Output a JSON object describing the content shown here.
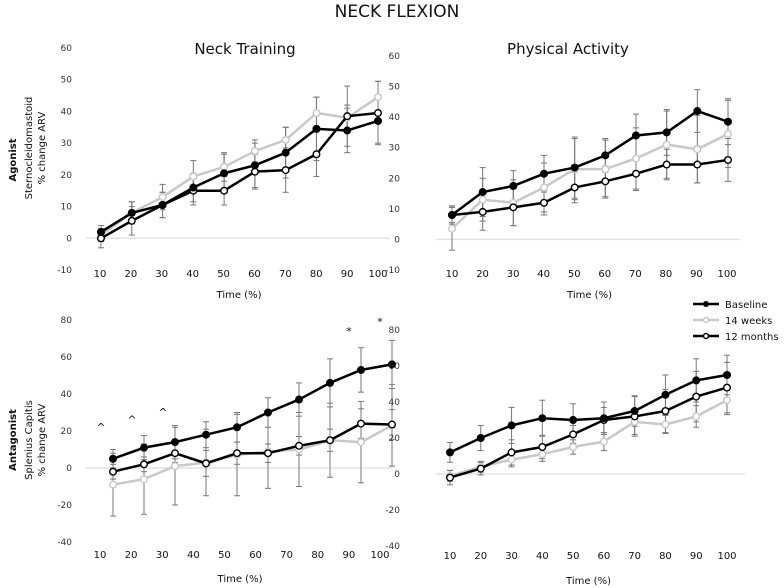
{
  "chart_data": {
    "type": "line",
    "title": "NECK FLEXION",
    "column_titles": [
      "Neck Training",
      "Physical Activity"
    ],
    "row_labels": [
      {
        "group": "Agonist",
        "ylabel": [
          "Sternocleidomastoid",
          "% change ARV"
        ]
      },
      {
        "group": "Antagonist",
        "ylabel": [
          "Splenius Capitis",
          "% change ARV"
        ]
      }
    ],
    "xlabel": "Time (%)",
    "x": [
      10,
      20,
      30,
      40,
      50,
      60,
      70,
      80,
      90,
      100
    ],
    "legend": {
      "position": "right-middle",
      "entries": [
        "Baseline",
        "14 weeks",
        "12 months"
      ]
    },
    "series_colors": {
      "Baseline": "#000000",
      "14 weeks": "#c8c8c8",
      "12 months": "#000000"
    },
    "panels": [
      {
        "name": "Neck Training - Agonist",
        "ylim": [
          -10,
          60
        ],
        "yticks": [
          -10,
          0,
          10,
          20,
          30,
          40,
          50,
          60
        ],
        "series": [
          {
            "name": "Baseline",
            "values": [
              2,
              8,
              10.5,
              16,
              20.5,
              23,
              27,
              34.5,
              34,
              37
            ],
            "err": [
              2,
              3.5,
              4,
              4.5,
              6,
              7,
              8,
              10,
              7,
              7
            ]
          },
          {
            "name": "14 weeks",
            "values": [
              1,
              8,
              13,
              19.5,
              22.5,
              27.5,
              31,
              39.5,
              38,
              44.5
            ],
            "err": [
              2,
              3.5,
              4,
              5,
              4.5,
              3.5,
              4,
              5,
              4,
              5
            ]
          },
          {
            "name": "12 months",
            "values": [
              0,
              5.5,
              10.5,
              15,
              15,
              21,
              21.5,
              26.5,
              38.5,
              39.5
            ],
            "err": [
              3,
              4.5,
              4,
              4.5,
              4.5,
              5.5,
              7,
              7,
              9.5,
              10
            ]
          }
        ],
        "annotations": []
      },
      {
        "name": "Physical Activity - Agonist",
        "ylim": [
          -10,
          60
        ],
        "yticks": [
          -10,
          0,
          10,
          20,
          30,
          40,
          50,
          60
        ],
        "series": [
          {
            "name": "Baseline",
            "values": [
              8,
              15.5,
              17.5,
              21.5,
              23.5,
              27.5,
              34,
              35,
              42,
              38.5
            ],
            "err": [
              3,
              8,
              5,
              6,
              10,
              5.5,
              7,
              7.5,
              7,
              7.5
            ]
          },
          {
            "name": "14 weeks",
            "values": [
              3.5,
              13,
              12,
              17,
              23,
              23,
              26.5,
              31,
              29.5,
              34.5
            ],
            "err": [
              7,
              7,
              7.5,
              8,
              10,
              9.5,
              10,
              11,
              11,
              11
            ]
          },
          {
            "name": "12 months",
            "values": [
              8,
              9,
              10.5,
              12,
              17,
              19,
              21.5,
              24.5,
              24.5,
              26
            ],
            "err": [
              2.5,
              6,
              6,
              4,
              5,
              5,
              5.5,
              5,
              6,
              7
            ]
          }
        ],
        "annotations": []
      },
      {
        "name": "Neck Training - Antagonist",
        "ylim": [
          -40,
          80
        ],
        "yticks": [
          -40,
          -20,
          0,
          20,
          40,
          60,
          80
        ],
        "series": [
          {
            "name": "Baseline",
            "values": [
              5,
              11,
              14,
              18,
              22,
              30,
              37,
              46,
              53,
              56
            ],
            "err": [
              5,
              6.5,
              9,
              7,
              8,
              8,
              9,
              13,
              12,
              13
            ]
          },
          {
            "name": "14 weeks",
            "values": [
              -9,
              -6,
              1,
              3,
              7,
              9,
              10,
              15,
              14,
              23
            ],
            "err": [
              17,
              19,
              21,
              18,
              22,
              20,
              20,
              20,
              22,
              22
            ]
          },
          {
            "name": "12 months",
            "values": [
              -2,
              2,
              8,
              2.5,
              8,
              8,
              12,
              15,
              24,
              23.5
            ],
            "err": [
              4,
              4,
              5,
              7,
              6,
              5,
              5,
              6,
              8,
              8
            ]
          }
        ],
        "annotations": [
          {
            "x": 10,
            "text": "^",
            "y": 20
          },
          {
            "x": 20,
            "text": "^",
            "y": 24
          },
          {
            "x": 30,
            "text": "^",
            "y": 28
          },
          {
            "x": 90,
            "text": "*",
            "y": 72
          },
          {
            "x": 100,
            "text": "*",
            "y": 77
          }
        ]
      },
      {
        "name": "Physical Activity - Antagonist",
        "ylim": [
          -40,
          80
        ],
        "yticks": [
          -40,
          -20,
          0,
          20,
          40,
          60,
          80
        ],
        "series": [
          {
            "name": "Baseline",
            "values": [
              12,
              20,
              27,
              31,
              30,
              31,
              35,
              44,
              52,
              55
            ],
            "err": [
              5.5,
              7,
              10,
              10,
              9,
              9,
              8.5,
              11,
              12,
              11
            ]
          },
          {
            "name": "14 weeks",
            "values": [
              -1,
              4,
              8,
              11,
              15,
              18,
              29,
              27.5,
              32,
              41
            ],
            "err": [
              3,
              3,
              4,
              4,
              4,
              5,
              7,
              5,
              6,
              8
            ]
          },
          {
            "name": "12 months",
            "values": [
              -2,
              3,
              12,
              15,
              22,
              30,
              32,
              35,
              43,
              48
            ],
            "err": [
              4,
              3.5,
              7,
              6.5,
              5,
              7,
              11,
              12,
              14,
              14
            ]
          }
        ],
        "annotations": []
      }
    ]
  }
}
